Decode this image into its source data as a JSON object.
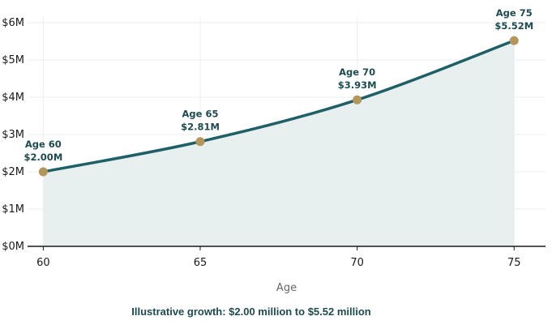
{
  "chart_data": {
    "type": "line",
    "x": [
      60,
      65,
      70,
      75
    ],
    "series": [
      {
        "values": [
          2.0,
          2.81,
          3.93,
          5.52
        ],
        "annotations": [
          [
            "Age 60",
            "$2.00M"
          ],
          [
            "Age 65",
            "$2.81M"
          ],
          [
            "Age 70",
            "$3.93M"
          ],
          [
            "Age 75",
            "$5.52M"
          ]
        ]
      }
    ],
    "xlabel": "Age",
    "ylabel": "",
    "xlim": [
      59.5,
      76
    ],
    "ylim": [
      0,
      6
    ],
    "x_ticks": [
      "60",
      "65",
      "70",
      "75"
    ],
    "y_ticks": [
      "$0M",
      "$1M",
      "$2M",
      "$3M",
      "$4M",
      "$5M",
      "$6M"
    ],
    "grid": true,
    "area_fill": true,
    "colors": {
      "line": "#1f5f66",
      "area": "#e8f0ef",
      "marker": "#b5965a",
      "annotation": "#1d4b50",
      "grid": "#eeeeee"
    }
  },
  "caption": "Illustrative growth: $2.00 million to $5.52 million"
}
